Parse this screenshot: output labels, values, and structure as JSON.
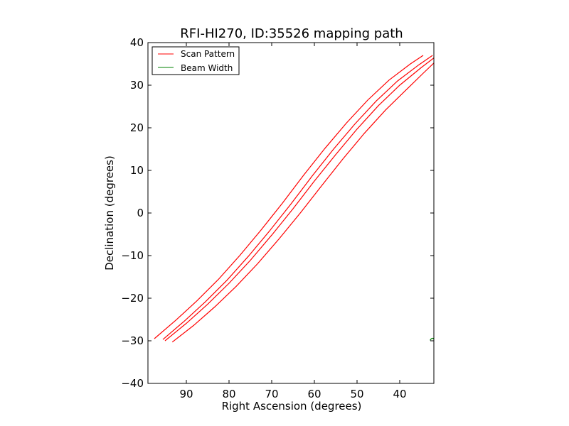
{
  "chart_data": {
    "type": "line",
    "title": "RFI-HI270, ID:35526 mapping path",
    "xlabel": "Right Ascension (degrees)",
    "ylabel": "Declination (degrees)",
    "xlim": [
      99,
      32
    ],
    "ylim": [
      -40,
      40
    ],
    "x_inverted": true,
    "xticks": [
      90,
      80,
      70,
      60,
      50,
      40
    ],
    "yticks": [
      40,
      30,
      20,
      10,
      0,
      -10,
      -20,
      -30,
      -40
    ],
    "xtick_labels": [
      "90",
      "80",
      "70",
      "60",
      "50",
      "40"
    ],
    "ytick_labels": [
      "40",
      "30",
      "20",
      "10",
      "0",
      "−10",
      "−20",
      "−30",
      "−40"
    ],
    "grid": false,
    "legend_position": "top-left",
    "legend": [
      {
        "label": "Scan Pattern",
        "color": "#ff0000"
      },
      {
        "label": "Beam Width",
        "color": "#008000"
      }
    ],
    "series": [
      {
        "name": "Scan Pattern",
        "color": "#ff0000",
        "x": [
          97.5,
          92.5,
          87.5,
          82.5,
          77.5,
          72.5,
          67.5,
          62.5,
          57.5,
          52.5,
          47.5,
          42.5,
          37.5,
          34.5
        ],
        "y": [
          -29.5,
          -25.2,
          -20.6,
          -15.6,
          -10.0,
          -4.0,
          2.3,
          8.9,
          15.2,
          21.1,
          26.5,
          31.2,
          35.0,
          37.0
        ]
      },
      {
        "name": "Scan Pattern",
        "color": "#ff0000",
        "x": [
          95.5,
          90.5,
          85.5,
          80.5,
          75.5,
          70.5,
          65.5,
          60.5,
          55.5,
          50.5,
          45.5,
          40.5,
          35.5,
          32.3
        ],
        "y": [
          -29.7,
          -25.4,
          -20.8,
          -15.8,
          -10.2,
          -4.2,
          2.1,
          8.7,
          15.0,
          20.9,
          26.3,
          31.0,
          34.8,
          37.0
        ]
      },
      {
        "name": "Scan Pattern",
        "color": "#ff0000",
        "x": [
          95.0,
          90.0,
          85.0,
          80.0,
          75.0,
          70.0,
          65.0,
          60.0,
          55.0,
          50.0,
          45.0,
          40.0,
          35.0,
          32.0
        ],
        "y": [
          -30.0,
          -25.9,
          -21.4,
          -16.5,
          -11.1,
          -5.2,
          1.0,
          7.5,
          13.7,
          19.7,
          25.2,
          30.0,
          34.1,
          36.4
        ]
      },
      {
        "name": "Scan Pattern",
        "color": "#ff0000",
        "x": [
          93.3,
          88.3,
          83.3,
          78.3,
          73.3,
          68.3,
          63.3,
          58.3,
          53.3,
          48.3,
          43.3,
          38.3,
          34.3,
          32.0
        ],
        "y": [
          -30.3,
          -26.4,
          -22.0,
          -17.2,
          -11.9,
          -6.1,
          0.0,
          6.4,
          12.7,
          18.7,
          24.2,
          29.1,
          33.0,
          35.2
        ]
      },
      {
        "name": "Beam Width",
        "color": "#008000",
        "x": [
          32.9,
          32.6,
          32.2,
          32.0
        ],
        "y": [
          -29.9,
          -29.5,
          -29.4,
          -29.6
        ]
      }
    ]
  }
}
